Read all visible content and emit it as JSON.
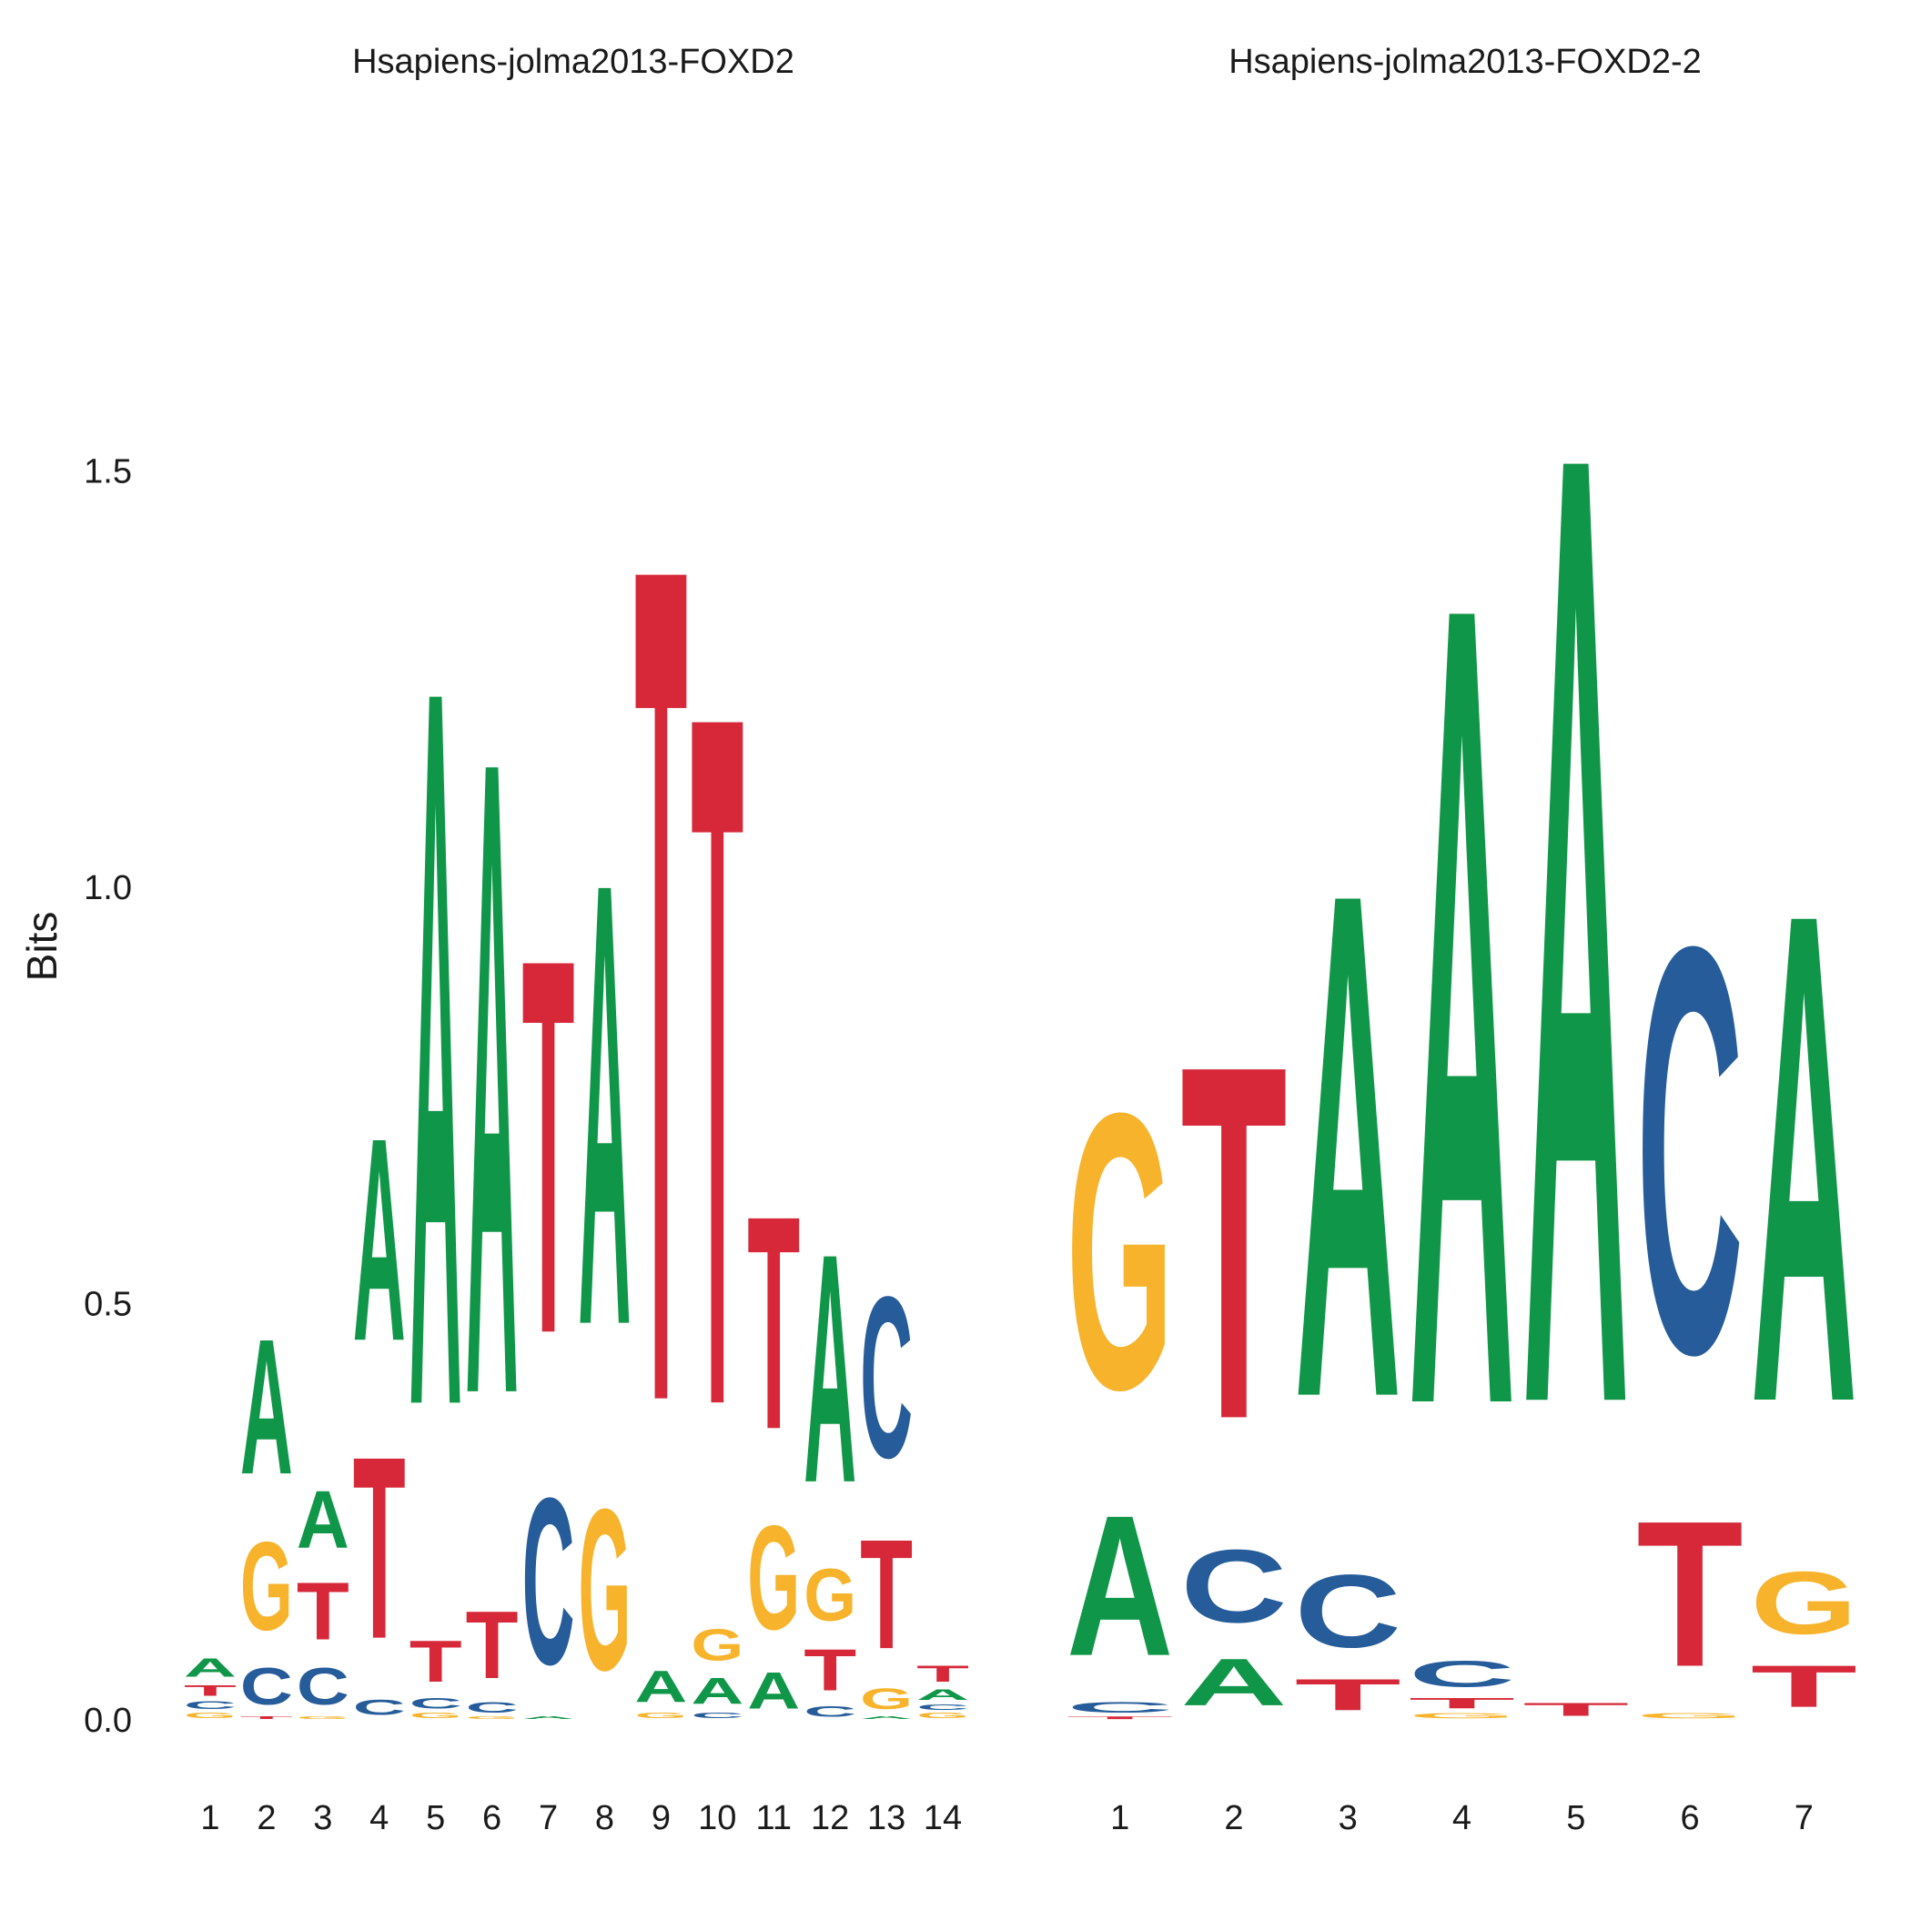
{
  "colors": {
    "A": "#109648",
    "C": "#255C99",
    "G": "#F7B32B",
    "T": "#D62839"
  },
  "chart_data": [
    {
      "type": "sequence-logo",
      "title": "Hsapiens-jolma2013-FOXD2",
      "ylabel": "Bits",
      "ylim": [
        0,
        2
      ],
      "yticks": [
        "0.0",
        "0.5",
        "1.0",
        "1.5"
      ],
      "positions": [
        "1",
        "2",
        "3",
        "4",
        "5",
        "6",
        "7",
        "8",
        "9",
        "10",
        "11",
        "12",
        "13",
        "14"
      ],
      "columns": [
        [
          {
            "base": "G",
            "bits": 0.01
          },
          {
            "base": "C",
            "bits": 0.015
          },
          {
            "base": "T",
            "bits": 0.02
          },
          {
            "base": "A",
            "bits": 0.035
          }
        ],
        [
          {
            "base": "T",
            "bits": 0.005
          },
          {
            "base": "C",
            "bits": 0.07
          },
          {
            "base": "G",
            "bits": 0.17
          },
          {
            "base": "A",
            "bits": 0.26
          }
        ],
        [
          {
            "base": "G",
            "bits": 0.005
          },
          {
            "base": "C",
            "bits": 0.07
          },
          {
            "base": "T",
            "bits": 0.11
          },
          {
            "base": "A",
            "bits": 0.11
          }
        ],
        [
          {
            "base": "C",
            "bits": 0.03
          },
          {
            "base": "T",
            "bits": 0.35
          },
          {
            "base": "A",
            "bits": 0.39
          }
        ],
        [
          {
            "base": "G",
            "bits": 0.01
          },
          {
            "base": "C",
            "bits": 0.02
          },
          {
            "base": "T",
            "bits": 0.08
          },
          {
            "base": "A",
            "bits": 1.38
          }
        ],
        [
          {
            "base": "G",
            "bits": 0.005
          },
          {
            "base": "C",
            "bits": 0.02
          },
          {
            "base": "T",
            "bits": 0.13
          },
          {
            "base": "A",
            "bits": 1.22
          }
        ],
        [
          {
            "base": "A",
            "bits": 0.005
          },
          {
            "base": "C",
            "bits": 0.32
          },
          {
            "base": "T",
            "bits": 0.72
          }
        ],
        [
          {
            "base": "G",
            "bits": 0.31
          },
          {
            "base": "A",
            "bits": 0.85
          }
        ],
        [
          {
            "base": "G",
            "bits": 0.01
          },
          {
            "base": "A",
            "bits": 0.06
          },
          {
            "base": "T",
            "bits": 1.61
          }
        ],
        [
          {
            "base": "C",
            "bits": 0.01
          },
          {
            "base": "A",
            "bits": 0.05
          },
          {
            "base": "G",
            "bits": 0.06
          },
          {
            "base": "T",
            "bits": 1.33
          }
        ],
        [
          {
            "base": "A",
            "bits": 0.07
          },
          {
            "base": "G",
            "bits": 0.2
          },
          {
            "base": "T",
            "bits": 0.41
          }
        ],
        [
          {
            "base": "C",
            "bits": 0.02
          },
          {
            "base": "T",
            "bits": 0.08
          },
          {
            "base": "G",
            "bits": 0.1
          },
          {
            "base": "A",
            "bits": 0.44
          }
        ],
        [
          {
            "base": "A",
            "bits": 0.005
          },
          {
            "base": "G",
            "bits": 0.04
          },
          {
            "base": "T",
            "bits": 0.21
          },
          {
            "base": "C",
            "bits": 0.31
          }
        ],
        [
          {
            "base": "G",
            "bits": 0.01
          },
          {
            "base": "C",
            "bits": 0.01
          },
          {
            "base": "A",
            "bits": 0.02
          },
          {
            "base": "T",
            "bits": 0.03
          }
        ]
      ]
    },
    {
      "type": "sequence-logo",
      "title": "Hsapiens-jolma2013-FOXD2-2",
      "ylabel": "Bits",
      "ylim": [
        0,
        2
      ],
      "positions": [
        "1",
        "2",
        "3",
        "4",
        "5",
        "6",
        "7"
      ],
      "columns": [
        [
          {
            "base": "T",
            "bits": 0.005
          },
          {
            "base": "C",
            "bits": 0.02
          },
          {
            "base": "A",
            "bits": 0.27
          },
          {
            "base": "G",
            "bits": 0.53
          }
        ],
        [
          {
            "base": "A",
            "bits": 0.09
          },
          {
            "base": "C",
            "bits": 0.14
          },
          {
            "base": "T",
            "bits": 0.68
          }
        ],
        [
          {
            "base": "T",
            "bits": 0.06
          },
          {
            "base": "C",
            "bits": 0.14
          },
          {
            "base": "A",
            "bits": 0.97
          }
        ],
        [
          {
            "base": "G",
            "bits": 0.01
          },
          {
            "base": "T",
            "bits": 0.02
          },
          {
            "base": "C",
            "bits": 0.05
          },
          {
            "base": "A",
            "bits": 1.54
          }
        ],
        [
          {
            "base": "T",
            "bits": 0.025
          },
          {
            "base": "A",
            "bits": 1.83
          }
        ],
        [
          {
            "base": "G",
            "bits": 0.01
          },
          {
            "base": "T",
            "bits": 0.28
          },
          {
            "base": "C",
            "bits": 0.78
          }
        ],
        [
          {
            "base": "T",
            "bits": 0.08
          },
          {
            "base": "G",
            "bits": 0.12
          },
          {
            "base": "A",
            "bits": 0.94
          }
        ]
      ]
    }
  ]
}
